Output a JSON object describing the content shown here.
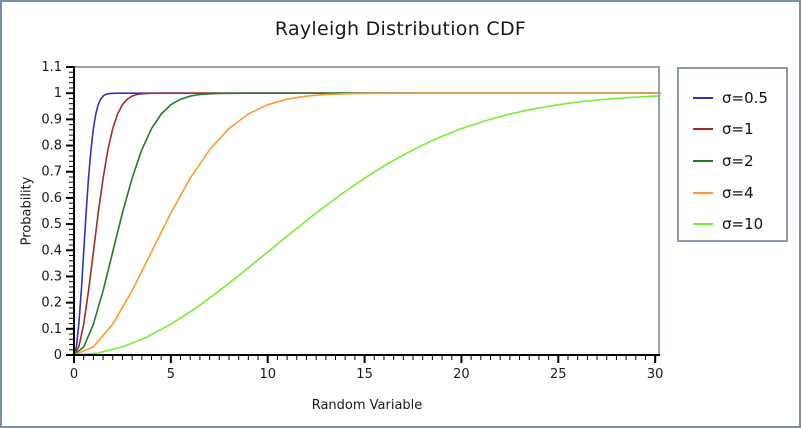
{
  "window": {
    "bg_color": "#ffffff",
    "frame_color": "#7d8fa5",
    "plot_border_color": "#94a2b4",
    "axis_color": "#000000"
  },
  "chart_data": {
    "type": "line",
    "title": "Rayleigh Distribution CDF",
    "xlabel": "Random Variable",
    "ylabel": "Probability",
    "xlim": [
      0,
      30.25
    ],
    "ylim": [
      0,
      1.1
    ],
    "grid": false,
    "legend_position": "right-outside",
    "x_ticks": {
      "values": [
        0,
        5,
        10,
        15,
        20,
        25,
        30
      ],
      "labels": [
        "0",
        "5",
        "10",
        "15",
        "20",
        "25",
        "30"
      ],
      "minor_step": 0.5
    },
    "y_ticks": {
      "values": [
        0,
        0.1,
        0.2,
        0.3,
        0.4,
        0.5,
        0.6,
        0.7,
        0.8,
        0.9,
        1,
        1.1
      ],
      "labels": [
        "0",
        "0.1",
        "0.2",
        "0.3",
        "0.4",
        "0.5",
        "0.6",
        "0.7",
        "0.8",
        "0.9",
        "1",
        "1.1"
      ],
      "minor_step": 0.02
    },
    "series": [
      {
        "name": "σ=0.5",
        "color": "#3333b2",
        "x": [
          0,
          0.125,
          0.25,
          0.375,
          0.5,
          0.625,
          0.75,
          0.875,
          1,
          1.125,
          1.25,
          1.375,
          1.5,
          1.625,
          1.75,
          1.875,
          2,
          2.25,
          2.5,
          3,
          30.25
        ],
        "y": [
          0,
          0.0308,
          0.1175,
          0.2452,
          0.3935,
          0.5422,
          0.6753,
          0.7838,
          0.8647,
          0.9204,
          0.9561,
          0.9772,
          0.9889,
          0.9949,
          0.9978,
          0.9991,
          0.9997,
          1,
          1,
          1,
          1
        ]
      },
      {
        "name": "σ=1",
        "color": "#a52a2a",
        "x": [
          0,
          0.25,
          0.5,
          0.75,
          1,
          1.25,
          1.5,
          1.75,
          2,
          2.25,
          2.5,
          2.75,
          3,
          3.25,
          3.5,
          3.75,
          4,
          4.5,
          5,
          6,
          30.25
        ],
        "y": [
          0,
          0.0308,
          0.1175,
          0.2452,
          0.3935,
          0.5422,
          0.6753,
          0.7838,
          0.8647,
          0.9204,
          0.9561,
          0.9772,
          0.9889,
          0.9949,
          0.9978,
          0.9991,
          0.9997,
          1,
          1,
          1,
          1
        ]
      },
      {
        "name": "σ=2",
        "color": "#267b26",
        "x": [
          0,
          0.5,
          1,
          1.5,
          2,
          2.5,
          3,
          3.5,
          4,
          4.5,
          5,
          5.5,
          6,
          6.5,
          7,
          7.5,
          8,
          9,
          10,
          12,
          30.25
        ],
        "y": [
          0,
          0.0308,
          0.1175,
          0.2452,
          0.3935,
          0.5422,
          0.6753,
          0.7838,
          0.8647,
          0.9204,
          0.9561,
          0.9772,
          0.9889,
          0.9949,
          0.9978,
          0.9991,
          0.9997,
          1,
          1,
          1,
          1
        ]
      },
      {
        "name": "σ=4",
        "color": "#ff9933",
        "x": [
          0,
          1,
          2,
          3,
          4,
          5,
          6,
          7,
          8,
          9,
          10,
          11,
          12,
          13,
          14,
          15,
          16,
          18,
          20,
          24,
          30.25
        ],
        "y": [
          0,
          0.0308,
          0.1175,
          0.2452,
          0.3935,
          0.5422,
          0.6753,
          0.7838,
          0.8647,
          0.9204,
          0.9561,
          0.9772,
          0.9889,
          0.9949,
          0.9978,
          0.9991,
          0.9997,
          1,
          1,
          1,
          1
        ]
      },
      {
        "name": "σ=10",
        "color": "#77ee33",
        "x": [
          0,
          1.25,
          2.5,
          3.75,
          5,
          6.25,
          7.5,
          8.75,
          10,
          11.25,
          12.5,
          13.75,
          15,
          16.25,
          17.5,
          18.75,
          20,
          21.25,
          22.5,
          23.75,
          25,
          26.25,
          27.5,
          28.75,
          30,
          30.25
        ],
        "y": [
          0,
          0.0078,
          0.0308,
          0.0679,
          0.1175,
          0.1774,
          0.2452,
          0.3181,
          0.3935,
          0.4689,
          0.5422,
          0.6115,
          0.6753,
          0.733,
          0.7838,
          0.8276,
          0.8647,
          0.8954,
          0.9204,
          0.9404,
          0.9561,
          0.9681,
          0.9772,
          0.984,
          0.9889,
          0.9897
        ]
      }
    ]
  }
}
